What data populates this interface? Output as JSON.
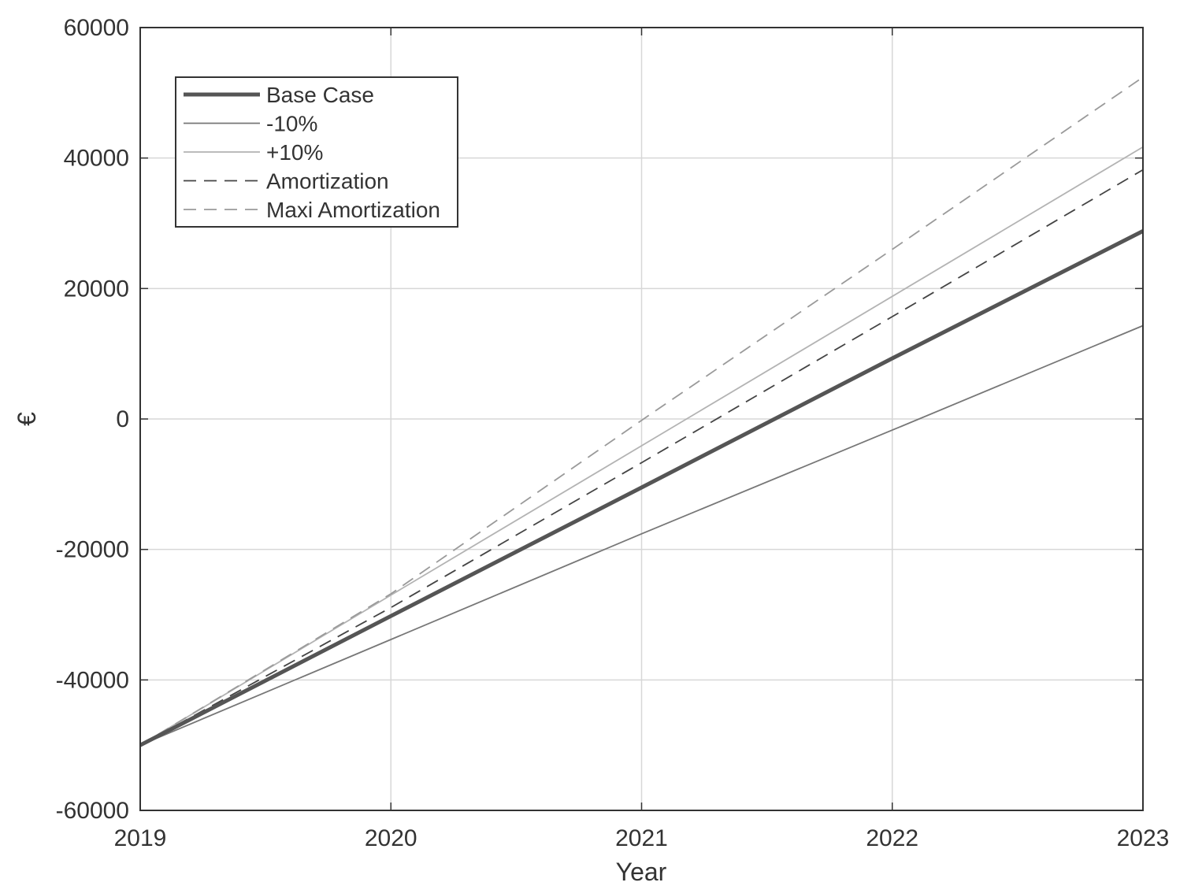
{
  "chart_data": {
    "type": "line",
    "title": "",
    "xlabel": "Year",
    "ylabel": "€",
    "xlim": [
      2019,
      2023
    ],
    "ylim": [
      -60000,
      60000
    ],
    "xticks": [
      2019,
      2020,
      2021,
      2022,
      2023
    ],
    "yticks": [
      -60000,
      -40000,
      -20000,
      0,
      20000,
      40000,
      60000
    ],
    "xtick_labels": [
      "2019",
      "2020",
      "2021",
      "2022",
      "2023"
    ],
    "ytick_labels": [
      "-60000",
      "-40000",
      "-20000",
      "0",
      "20000",
      "40000",
      "60000"
    ],
    "grid": true,
    "legend_position": "top-left",
    "x": [
      2019,
      2020,
      2021,
      2022,
      2023
    ],
    "series": [
      {
        "name": "Base Case",
        "values": [
          -50000,
          -30200,
          -10500,
          9300,
          28800
        ],
        "color": "#555555",
        "style": "solid",
        "weight": "thick"
      },
      {
        "name": "-10%",
        "values": [
          -50000,
          -33800,
          -17600,
          -1700,
          14300
        ],
        "color": "#777777",
        "style": "solid",
        "weight": "thin"
      },
      {
        "name": "+10%",
        "values": [
          -50000,
          -27000,
          -4100,
          18800,
          41700
        ],
        "color": "#b3b3b3",
        "style": "solid",
        "weight": "thin"
      },
      {
        "name": "Amortization",
        "values": [
          -50000,
          -28900,
          -6700,
          15700,
          38200
        ],
        "color": "#444444",
        "style": "dashed",
        "weight": "thin"
      },
      {
        "name": "Maxi Amortization",
        "values": [
          -50000,
          -26800,
          -200,
          26000,
          52400
        ],
        "color": "#9a9a9a",
        "style": "dashed",
        "weight": "thin"
      }
    ]
  }
}
